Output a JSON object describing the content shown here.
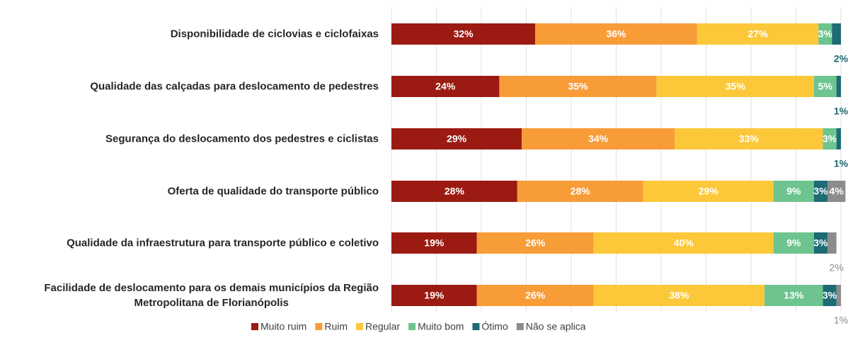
{
  "chart_data": {
    "type": "stacked_barh",
    "categories": [
      "Disponibilidade de ciclovias e ciclofaixas",
      "Qualidade das calçadas para deslocamento de pedestres",
      "Segurança do deslocamento dos pedestres e ciclistas",
      "Oferta de qualidade do transporte público",
      "Qualidade da infraestrutura para transporte público e coletivo",
      "Facilidade de deslocamento para os demais municípios da Região\nMetropolitana de Florianópolis"
    ],
    "series": [
      {
        "name": "Muito ruim",
        "color": "#9b1b12",
        "values": [
          32,
          24,
          29,
          28,
          19,
          19
        ],
        "value_labels": [
          "32%",
          "24%",
          "29%",
          "28%",
          "19%",
          "19%"
        ]
      },
      {
        "name": "Ruim",
        "color": "#f89c38",
        "values": [
          36,
          35,
          34,
          28,
          26,
          26
        ],
        "value_labels": [
          "36%",
          "35%",
          "34%",
          "28%",
          "26%",
          "26%"
        ]
      },
      {
        "name": "Regular",
        "color": "#fcc83a",
        "values": [
          27,
          35,
          33,
          29,
          40,
          38
        ],
        "value_labels": [
          "27%",
          "35%",
          "33%",
          "29%",
          "40%",
          "38%"
        ]
      },
      {
        "name": "Muito bom",
        "color": "#6dc48f",
        "values": [
          3,
          5,
          3,
          9,
          9,
          13
        ],
        "value_labels": [
          "3%",
          "5%",
          "3%",
          "9%",
          "9%",
          "13%"
        ]
      },
      {
        "name": "Ótimo",
        "color": "#1d6b74",
        "values": [
          2,
          1,
          1,
          3,
          3,
          3
        ],
        "value_labels": [
          "2%",
          "1%",
          "1%",
          "3%",
          "3%",
          "3%"
        ]
      },
      {
        "name": "Não se aplica",
        "color": "#8c8c8c",
        "values": [
          null,
          null,
          null,
          4,
          2,
          1
        ],
        "value_labels": [
          null,
          null,
          null,
          "4%",
          "2%",
          "1%"
        ]
      }
    ],
    "xlim": [
      0,
      100
    ],
    "xticks": [
      0,
      10,
      20,
      30,
      40,
      50,
      60,
      70,
      80,
      90,
      100
    ],
    "grid": true
  }
}
